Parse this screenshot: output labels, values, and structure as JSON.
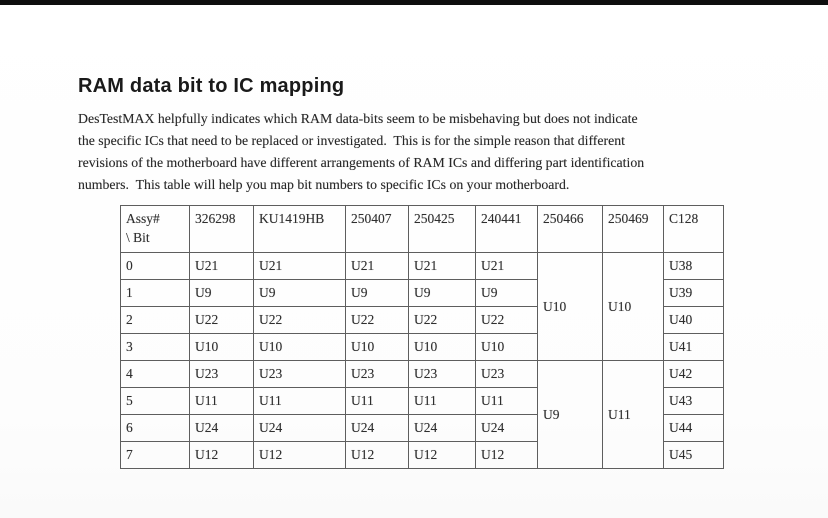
{
  "page": {
    "title": "RAM data bit to IC mapping",
    "paragraph_lines": [
      "DesTestMAX helpfully indicates which RAM data-bits seem to be misbehaving but does not indicate",
      "the specific ICs that need to be replaced or investigated.  This is for the simple reason that different",
      "revisions of the motherboard have different arrangements of RAM ICs and differing part identification",
      "numbers.  This table will help you map bit numbers to specific ICs on your motherboard."
    ]
  },
  "table": {
    "header": [
      "Assy#\n\\ Bit",
      "326298",
      "KU1419HB",
      "250407",
      "250425",
      "240441",
      "250466",
      "250469",
      "C128"
    ],
    "rows": [
      {
        "cells": [
          {
            "t": "0"
          },
          {
            "t": "U21"
          },
          {
            "t": "U21"
          },
          {
            "t": "U21"
          },
          {
            "t": "U21"
          },
          {
            "t": "U21"
          },
          {
            "t": "U10",
            "rowspan": 4
          },
          {
            "t": "U10",
            "rowspan": 4
          },
          {
            "t": "U38"
          }
        ]
      },
      {
        "cells": [
          {
            "t": "1"
          },
          {
            "t": "U9"
          },
          {
            "t": "U9"
          },
          {
            "t": "U9"
          },
          {
            "t": "U9"
          },
          {
            "t": "U9"
          },
          {
            "t": "U39"
          }
        ]
      },
      {
        "cells": [
          {
            "t": "2"
          },
          {
            "t": "U22"
          },
          {
            "t": "U22"
          },
          {
            "t": "U22"
          },
          {
            "t": "U22"
          },
          {
            "t": "U22"
          },
          {
            "t": "U40"
          }
        ]
      },
      {
        "cells": [
          {
            "t": "3"
          },
          {
            "t": "U10"
          },
          {
            "t": "U10"
          },
          {
            "t": "U10"
          },
          {
            "t": "U10"
          },
          {
            "t": "U10"
          },
          {
            "t": "U41"
          }
        ]
      },
      {
        "cells": [
          {
            "t": "4"
          },
          {
            "t": "U23"
          },
          {
            "t": "U23"
          },
          {
            "t": "U23"
          },
          {
            "t": "U23"
          },
          {
            "t": "U23"
          },
          {
            "t": "U9",
            "rowspan": 4
          },
          {
            "t": "U11",
            "rowspan": 4
          },
          {
            "t": "U42"
          }
        ]
      },
      {
        "cells": [
          {
            "t": "5"
          },
          {
            "t": "U11"
          },
          {
            "t": "U11"
          },
          {
            "t": "U11"
          },
          {
            "t": "U11"
          },
          {
            "t": "U11"
          },
          {
            "t": "U43"
          }
        ]
      },
      {
        "cells": [
          {
            "t": "6"
          },
          {
            "t": "U24"
          },
          {
            "t": "U24"
          },
          {
            "t": "U24"
          },
          {
            "t": "U24"
          },
          {
            "t": "U24"
          },
          {
            "t": "U44"
          }
        ]
      },
      {
        "cells": [
          {
            "t": "7"
          },
          {
            "t": "U12"
          },
          {
            "t": "U12"
          },
          {
            "t": "U12"
          },
          {
            "t": "U12"
          },
          {
            "t": "U12"
          },
          {
            "t": "U45"
          }
        ]
      }
    ]
  },
  "colors": {
    "page_background": "#fdfdfd",
    "top_edge_bar": "#0e0e0e",
    "body_text": "#282828",
    "table_border": "#5e5e5e"
  }
}
